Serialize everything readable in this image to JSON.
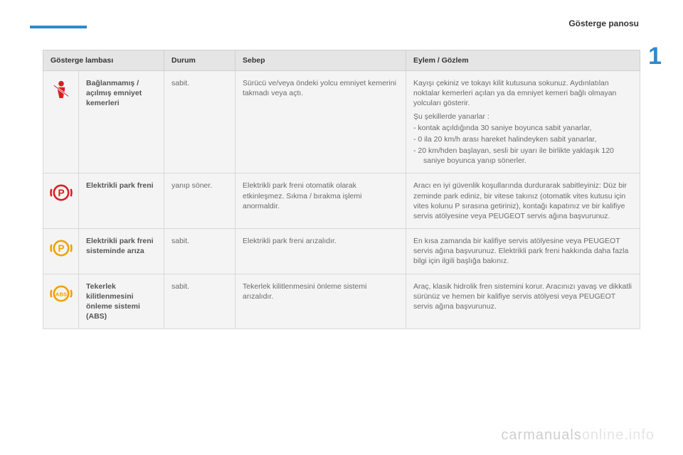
{
  "page": {
    "section_title": "Gösterge panosu",
    "chapter_number": "1",
    "watermark_prefix": "carmanuals",
    "watermark_suffix": "online.info"
  },
  "table": {
    "headers": {
      "lamp": "Gösterge lambası",
      "state": "Durum",
      "cause": "Sebep",
      "action": "Eylem / Gözlem"
    },
    "rows": [
      {
        "icon": {
          "name": "seatbelt-icon",
          "color": "#d62020",
          "type": "seatbelt"
        },
        "label": "Bağlanmamış / açılmış emniyet kemerleri",
        "state": "sabit.",
        "cause": "Sürücü ve/veya öndeki yolcu emniyet kemerini takmadı veya açtı.",
        "action_intro": "Kayışı çekiniz ve tokayı kilit kutusuna sokunuz. Aydınlatılan noktalar kemerleri açılan ya da emniyet kemeri bağlı olmayan yolcuları gösterir.",
        "action_list_title": "Şu şekillerde yanarlar :",
        "action_items": [
          "kontak açıldığında 30 saniye boyunca sabit yanarlar,",
          "0 ila 20 km/h arası hareket halindeyken sabit yanarlar,",
          "20 km/hden başlayan, sesli bir uyarı ile birlikte yaklaşık 120 saniye boyunca yanıp sönerler."
        ]
      },
      {
        "icon": {
          "name": "electric-parking-brake-icon",
          "color": "#d62020",
          "type": "p-circle"
        },
        "label": "Elektrikli park freni",
        "state": "yanıp söner.",
        "cause": "Elektrikli park freni otomatik olarak etkinleşmez. Sıkma / bırakma işlemi anormaldir.",
        "action": "Aracı en iyi güvenlik koşullarında durdurarak sabitleyiniz: Düz bir zeminde park ediniz, bir vitese takınız (otomatik vites kutusu için vites kolunu P sırasına getiriniz), kontağı kapatınız ve bir kalifiye servis atölyesine veya PEUGEOT servis ağına başvurunuz."
      },
      {
        "icon": {
          "name": "electric-parking-brake-fault-icon",
          "color": "#f2a000",
          "type": "p-circle"
        },
        "label": "Elektrikli park freni sisteminde arıza",
        "state": "sabit.",
        "cause": "Elektrikli park freni arızalıdır.",
        "action": "En kısa zamanda bir kalifiye servis atölyesine veya PEUGEOT servis ağına başvurunuz. Elektrikli park freni hakkında daha fazla bilgi için ilgili başlığa bakınız."
      },
      {
        "icon": {
          "name": "abs-icon",
          "color": "#f2a000",
          "type": "abs"
        },
        "label": "Tekerlek kilitlenmesini önleme sistemi (ABS)",
        "state": "sabit.",
        "cause": "Tekerlek kilitlenmesini önleme sistemi arızalıdır.",
        "action": "Araç, klasik hidrolik fren sistemini korur. Aracınızı yavaş ve dikkatli sürünüz ve hemen bir kalifiye servis atölyesi veya PEUGEOT servis ağına başvurunuz."
      }
    ]
  }
}
